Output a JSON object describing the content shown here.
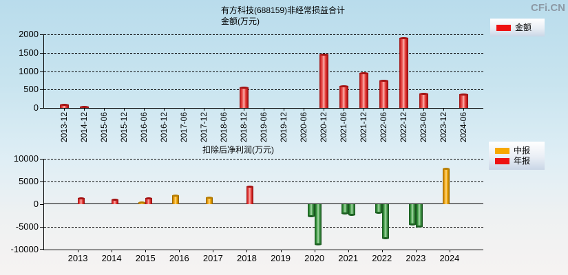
{
  "page": {
    "logo": "CFi.CN"
  },
  "chart_data": [
    {
      "type": "bar",
      "title": "有方科技(688159)非经常损益合计",
      "ylabel": "金额(万元)",
      "legend": [
        {
          "label": "金额",
          "color": "#ee1111"
        }
      ],
      "legend_position": "top-right",
      "grid": "dashed-horizontal",
      "categories": [
        "2013-12",
        "2014-12",
        "2015-06",
        "2015-12",
        "2016-06",
        "2016-12",
        "2017-06",
        "2017-12",
        "2018-06",
        "2018-12",
        "2019-06",
        "2019-12",
        "2020-06",
        "2020-12",
        "2021-06",
        "2021-12",
        "2022-06",
        "2022-12",
        "2023-06",
        "2023-12",
        "2024-06"
      ],
      "values": [
        90,
        40,
        null,
        null,
        null,
        null,
        null,
        null,
        null,
        560,
        null,
        null,
        null,
        1450,
        600,
        950,
        740,
        1900,
        390,
        null,
        380
      ],
      "ylim": [
        0,
        2000
      ],
      "yticks": [
        0,
        500,
        1000,
        1500,
        2000
      ],
      "bar_color": "#e53030"
    },
    {
      "type": "bar",
      "title": "扣除后净利润(万元)",
      "legend": [
        {
          "label": "中报",
          "color": "#f7a800"
        },
        {
          "label": "年报",
          "color": "#ee1111"
        }
      ],
      "legend_position": "top-right",
      "grid": "dashed-horizontal",
      "categories": [
        "2013",
        "2014",
        "2015",
        "2016",
        "2017",
        "2018",
        "2019",
        "2020",
        "2021",
        "2022",
        "2023",
        "2024"
      ],
      "series": [
        {
          "name": "中报",
          "color": "#f7a800",
          "values": [
            null,
            null,
            500,
            1900,
            1500,
            null,
            null,
            -2800,
            -2100,
            -2000,
            -4500,
            7900
          ]
        },
        {
          "name": "年报",
          "color": "#ee1111",
          "values": [
            1400,
            1000,
            1400,
            null,
            null,
            3900,
            null,
            -8900,
            -2400,
            -7500,
            -5000,
            null
          ]
        }
      ],
      "negative_color": "#2e8b33",
      "ylim": [
        -10000,
        10000
      ],
      "yticks": [
        -10000,
        -5000,
        0,
        5000,
        10000
      ]
    }
  ]
}
